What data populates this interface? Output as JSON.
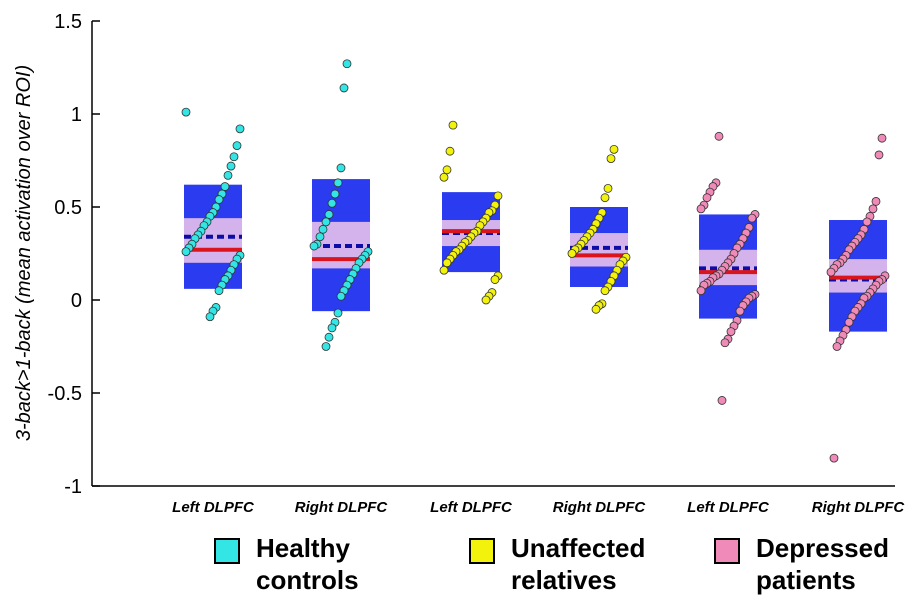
{
  "chart_data": {
    "type": "scatter",
    "ylabel": "3-back>1-back (mean activation over ROI)",
    "ylim": [
      -1,
      1.5
    ],
    "yticks": [
      -1,
      -0.5,
      0,
      0.5,
      1,
      1.5
    ],
    "ytick_labels": [
      "-1",
      "-0.5",
      "0",
      "0.5",
      "1",
      "1.5"
    ],
    "categories": [
      "Left DLPFC",
      "Right DLPFC",
      "Left DLPFC",
      "Right DLPFC",
      "Left DLPFC",
      "Right DLPFC"
    ],
    "groups": [
      {
        "name": "Healthy controls",
        "color": "#33e5e5"
      },
      {
        "name": "Unaffected relatives",
        "color": "#f2f20d"
      },
      {
        "name": "Depressed patients",
        "color": "#f08ab8"
      }
    ],
    "colors": {
      "box": "#2b3bef",
      "ci_band": "#d4b3ec",
      "mean_line": "#d9141c",
      "median_line": "#0d0da6"
    },
    "boxes": [
      {
        "category": "Left DLPFC",
        "group": "Healthy controls",
        "low": 0.06,
        "high": 0.62,
        "ci_low": 0.2,
        "ci_high": 0.44,
        "mean": 0.27,
        "median": 0.34
      },
      {
        "category": "Right DLPFC",
        "group": "Healthy controls",
        "low": -0.06,
        "high": 0.65,
        "ci_low": 0.17,
        "ci_high": 0.42,
        "mean": 0.22,
        "median": 0.29
      },
      {
        "category": "Left DLPFC",
        "group": "Unaffected relatives",
        "low": 0.15,
        "high": 0.58,
        "ci_low": 0.29,
        "ci_high": 0.43,
        "mean": 0.37,
        "median": 0.36
      },
      {
        "category": "Right DLPFC",
        "group": "Unaffected relatives",
        "low": 0.07,
        "high": 0.5,
        "ci_low": 0.18,
        "ci_high": 0.36,
        "mean": 0.24,
        "median": 0.28
      },
      {
        "category": "Left DLPFC",
        "group": "Depressed patients",
        "low": -0.1,
        "high": 0.46,
        "ci_low": 0.08,
        "ci_high": 0.27,
        "mean": 0.15,
        "median": 0.17
      },
      {
        "category": "Right DLPFC",
        "group": "Depressed patients",
        "low": -0.17,
        "high": 0.43,
        "ci_low": 0.04,
        "ci_high": 0.22,
        "mean": 0.12,
        "median": 0.11
      }
    ],
    "points": [
      [
        1.01,
        0.92,
        0.83,
        0.77,
        0.72,
        0.67,
        0.61,
        0.57,
        0.54,
        0.5,
        0.47,
        0.45,
        0.42,
        0.4,
        0.37,
        0.35,
        0.33,
        0.3,
        0.28,
        0.26,
        0.24,
        0.22,
        0.19,
        0.16,
        0.13,
        0.11,
        0.08,
        0.05,
        -0.04,
        -0.06,
        -0.09
      ],
      [
        1.27,
        1.14,
        0.71,
        0.63,
        0.57,
        0.52,
        0.46,
        0.42,
        0.38,
        0.34,
        0.3,
        0.29,
        0.26,
        0.24,
        0.22,
        0.2,
        0.17,
        0.14,
        0.11,
        0.08,
        0.05,
        0.02,
        -0.07,
        -0.12,
        -0.15,
        -0.2,
        -0.25
      ],
      [
        0.94,
        0.8,
        0.7,
        0.66,
        0.56,
        0.51,
        0.48,
        0.47,
        0.44,
        0.42,
        0.4,
        0.37,
        0.36,
        0.34,
        0.32,
        0.31,
        0.29,
        0.27,
        0.26,
        0.24,
        0.22,
        0.2,
        0.16,
        0.13,
        0.11,
        0.04,
        0.02,
        0.0
      ],
      [
        0.81,
        0.76,
        0.6,
        0.55,
        0.47,
        0.44,
        0.41,
        0.38,
        0.36,
        0.34,
        0.32,
        0.3,
        0.28,
        0.27,
        0.25,
        0.23,
        0.21,
        0.19,
        0.16,
        0.13,
        0.1,
        0.07,
        0.05,
        -0.02,
        -0.03,
        -0.05
      ],
      [
        0.88,
        0.63,
        0.61,
        0.58,
        0.55,
        0.51,
        0.49,
        0.46,
        0.44,
        0.39,
        0.36,
        0.33,
        0.3,
        0.28,
        0.25,
        0.22,
        0.2,
        0.18,
        0.16,
        0.14,
        0.13,
        0.12,
        0.1,
        0.09,
        0.08,
        0.05,
        0.03,
        0.02,
        0.01,
        -0.01,
        -0.03,
        -0.06,
        -0.11,
        -0.14,
        -0.17,
        -0.21,
        -0.23,
        -0.54
      ],
      [
        0.87,
        0.78,
        0.53,
        0.49,
        0.45,
        0.42,
        0.38,
        0.35,
        0.33,
        0.31,
        0.29,
        0.27,
        0.24,
        0.22,
        0.2,
        0.19,
        0.17,
        0.15,
        0.13,
        0.11,
        0.1,
        0.08,
        0.06,
        0.04,
        0.02,
        0.01,
        -0.02,
        -0.04,
        -0.06,
        -0.09,
        -0.12,
        -0.16,
        -0.19,
        -0.22,
        -0.25,
        -0.85
      ]
    ]
  },
  "legend": [
    {
      "line1": "Healthy",
      "line2": "controls",
      "color": "#33e5e5"
    },
    {
      "line1": "Unaffected",
      "line2": "relatives",
      "color": "#f2f20d"
    },
    {
      "line1": "Depressed",
      "line2": "patients",
      "color": "#f08ab8"
    }
  ]
}
